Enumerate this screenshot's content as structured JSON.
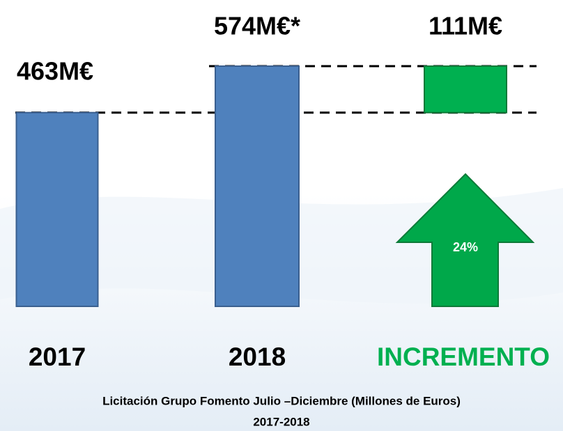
{
  "chart_data": {
    "type": "waterfall",
    "categories": [
      "2017",
      "2018",
      "INCREMENTO"
    ],
    "values": [
      463,
      574,
      111
    ],
    "value_labels": [
      "463M€",
      "574M€*",
      "111M€"
    ],
    "colors": [
      "#4f81bd",
      "#4f81bd",
      "#00b050"
    ],
    "label_colors": [
      "#000000",
      "#000000",
      "#00b050"
    ],
    "annotation": "24%",
    "title": "Licitación Grupo Fomento Julio –Diciembre (Millones de Euros)",
    "subtitle": "2017-2018"
  }
}
